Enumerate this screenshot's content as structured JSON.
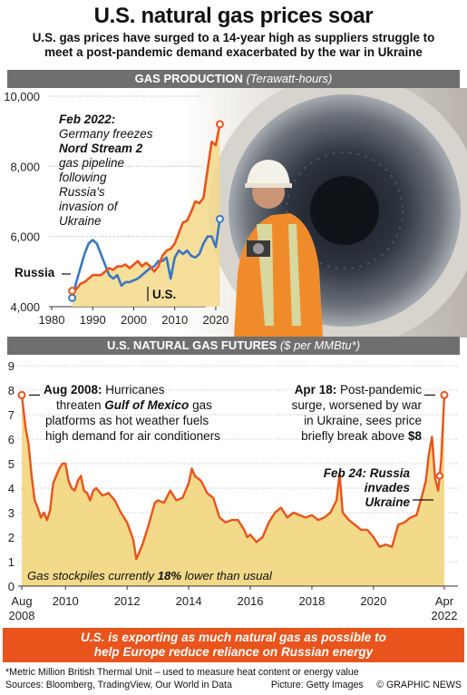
{
  "header": {
    "title": "U.S. natural gas prices soar",
    "subtitle_line1": "U.S. gas prices have surged to a 14-year high as suppliers struggle to",
    "subtitle_line2": "meet a post-pandemic demand exacerbated by the war in Ukraine"
  },
  "production_section": {
    "label": "GAS PRODUCTION",
    "unit": "(Terawatt-hours)"
  },
  "futures_section": {
    "label": "U.S. NATURAL GAS FUTURES",
    "unit": "($ per MMBtu*)"
  },
  "annotations": {
    "feb2022_date": "Feb 2022:",
    "feb2022_l1": "Germany freezes",
    "feb2022_bold": "Nord Stream 2",
    "feb2022_l3": "gas pipeline",
    "feb2022_l4": "following",
    "feb2022_l5": "Russia's",
    "feb2022_l6": "invasion of",
    "feb2022_l7": "Ukraine",
    "russia_label": "Russia",
    "us_label": "U.S.",
    "aug2008_date": "Aug 2008:",
    "aug2008_l1": "Hurricanes",
    "aug2008_l2a": "threaten",
    "aug2008_l2b": "Gulf of Mexico",
    "aug2008_l2c": "gas",
    "aug2008_l3": "platforms as hot weather fuels",
    "aug2008_l4": "high demand for air conditioners",
    "apr18_date": "Apr 18:",
    "apr18_l1": "Post-pandemic",
    "apr18_l2": "surge, worsened by war",
    "apr18_l3": "in Ukraine, sees price",
    "apr18_l4a": "briefly break above",
    "apr18_l4b": "$8",
    "feb24_l1": "Feb 24: Russia",
    "feb24_l2": "invades",
    "feb24_l3": "Ukraine",
    "stockpile_a": "Gas stockpiles currently",
    "stockpile_b": "18%",
    "stockpile_c": "lower than usual"
  },
  "banner": {
    "line1": "U.S. is exporting as much natural gas as possible to",
    "line2": "help Europe reduce reliance on Russian energy"
  },
  "footer": {
    "note": "*Metric Million British Thermal Unit – used to measure heat content or energy value",
    "sources": "Sources: Bloomberg, TradingView, Our World in Data",
    "picture": "Picture: Getty Images",
    "credit": "© GRAPHIC NEWS"
  },
  "colors": {
    "orange": "#e8541c",
    "blue": "#3a78c2",
    "fill": "#f3d98a",
    "bar": "#6f6f6f"
  },
  "chart_data": [
    {
      "type": "line",
      "title": "GAS PRODUCTION",
      "ylabel": "Terawatt-hours",
      "xlim": [
        1980,
        2022
      ],
      "ylim": [
        4000,
        10000
      ],
      "xticks": [
        1980,
        1990,
        2000,
        2010,
        2020
      ],
      "yticks": [
        4000,
        6000,
        8000,
        10000
      ],
      "ytick_labels": [
        "4,000",
        "6,000",
        "8,000",
        "10,000"
      ],
      "series": [
        {
          "name": "Russia",
          "color": "#3a78c2",
          "x": [
            1985,
            1986,
            1987,
            1988,
            1989,
            1990,
            1991,
            1992,
            1993,
            1994,
            1995,
            1996,
            1997,
            1998,
            1999,
            2000,
            2001,
            2002,
            2003,
            2004,
            2005,
            2006,
            2007,
            2008,
            2009,
            2010,
            2011,
            2012,
            2013,
            2014,
            2015,
            2016,
            2017,
            2018,
            2019,
            2020,
            2021
          ],
          "values": [
            4250,
            4700,
            5100,
            5500,
            5800,
            5900,
            5800,
            5500,
            5200,
            4900,
            4800,
            4900,
            4600,
            4700,
            4700,
            4750,
            4800,
            4900,
            5000,
            5100,
            5150,
            5300,
            5300,
            5400,
            4800,
            5400,
            5600,
            5500,
            5600,
            5450,
            5400,
            5500,
            5800,
            6000,
            6000,
            5700,
            6500
          ]
        },
        {
          "name": "U.S.",
          "color": "#e8541c",
          "x": [
            1985,
            1986,
            1987,
            1988,
            1989,
            1990,
            1991,
            1992,
            1993,
            1994,
            1995,
            1996,
            1997,
            1998,
            1999,
            2000,
            2001,
            2002,
            2003,
            2004,
            2005,
            2006,
            2007,
            2008,
            2009,
            2010,
            2011,
            2012,
            2013,
            2014,
            2015,
            2016,
            2017,
            2018,
            2019,
            2020,
            2021
          ],
          "values": [
            4450,
            4500,
            4650,
            4700,
            4800,
            4900,
            4900,
            4900,
            5000,
            5100,
            5050,
            5150,
            5150,
            5200,
            5100,
            5200,
            5300,
            5150,
            5250,
            5150,
            5000,
            5150,
            5450,
            5600,
            5650,
            5800,
            6100,
            6400,
            6450,
            6700,
            7000,
            6950,
            7100,
            7900,
            8700,
            8600,
            9200
          ]
        }
      ]
    },
    {
      "type": "area",
      "title": "U.S. NATURAL GAS FUTURES",
      "ylabel": "$ per MMBtu",
      "xticks": [
        "Aug 2008",
        "2010",
        "2012",
        "2014",
        "2016",
        "2018",
        "2020",
        "Apr 2022"
      ],
      "xlim": [
        2008.58,
        2022.3
      ],
      "ylim": [
        0,
        9
      ],
      "yticks": [
        0,
        1,
        2,
        3,
        4,
        5,
        6,
        7,
        8,
        9
      ],
      "series": [
        {
          "name": "Futures price",
          "color": "#e8541c",
          "x": [
            2008.58,
            2008.7,
            2008.8,
            2008.9,
            2009.0,
            2009.1,
            2009.2,
            2009.3,
            2009.4,
            2009.5,
            2009.6,
            2009.7,
            2009.8,
            2009.9,
            2010.0,
            2010.1,
            2010.2,
            2010.3,
            2010.4,
            2010.5,
            2010.6,
            2010.7,
            2010.8,
            2010.9,
            2011.0,
            2011.2,
            2011.4,
            2011.6,
            2011.8,
            2012.0,
            2012.2,
            2012.3,
            2012.5,
            2012.7,
            2012.9,
            2013.0,
            2013.2,
            2013.4,
            2013.6,
            2013.8,
            2014.0,
            2014.1,
            2014.2,
            2014.4,
            2014.6,
            2014.8,
            2015.0,
            2015.2,
            2015.4,
            2015.6,
            2015.8,
            2015.9,
            2016.0,
            2016.2,
            2016.4,
            2016.6,
            2016.8,
            2017.0,
            2017.2,
            2017.4,
            2017.6,
            2017.8,
            2018.0,
            2018.2,
            2018.4,
            2018.6,
            2018.8,
            2018.9,
            2019.0,
            2019.2,
            2019.4,
            2019.6,
            2019.8,
            2020.0,
            2020.2,
            2020.4,
            2020.6,
            2020.8,
            2021.0,
            2021.2,
            2021.4,
            2021.6,
            2021.7,
            2021.8,
            2021.9,
            2022.0,
            2022.1,
            2022.15,
            2022.2,
            2022.25,
            2022.3
          ],
          "values": [
            7.8,
            6.5,
            5.8,
            4.5,
            3.5,
            3.2,
            2.8,
            3.0,
            2.7,
            3.1,
            4.2,
            4.5,
            4.8,
            5.0,
            5.0,
            4.3,
            4.0,
            3.9,
            4.3,
            4.5,
            3.9,
            3.8,
            3.5,
            3.9,
            4.0,
            3.7,
            3.8,
            3.5,
            3.0,
            2.6,
            1.9,
            1.1,
            1.7,
            2.5,
            3.4,
            3.5,
            3.4,
            3.9,
            3.5,
            3.6,
            4.2,
            4.8,
            4.5,
            4.3,
            3.8,
            3.6,
            2.8,
            2.6,
            2.7,
            2.7,
            2.3,
            2.0,
            2.1,
            1.8,
            2.0,
            2.6,
            3.0,
            3.2,
            2.8,
            3.0,
            2.9,
            2.8,
            2.9,
            2.7,
            2.8,
            3.0,
            3.5,
            4.6,
            3.0,
            2.7,
            2.5,
            2.3,
            2.3,
            2.0,
            1.6,
            1.7,
            1.6,
            2.5,
            2.6,
            2.8,
            2.9,
            3.8,
            4.3,
            5.4,
            6.1,
            4.4,
            3.9,
            4.5,
            5.2,
            6.5,
            7.8
          ]
        }
      ]
    }
  ]
}
